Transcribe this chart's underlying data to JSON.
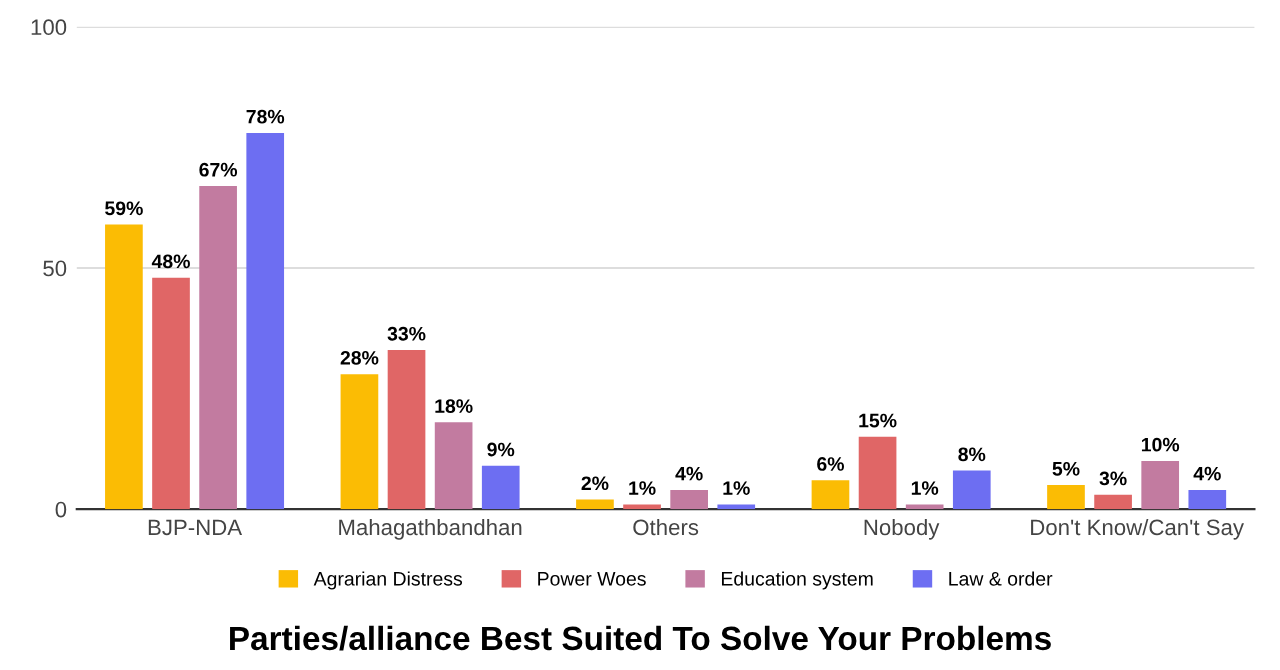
{
  "chart_data": {
    "type": "bar",
    "title": "Parties/alliance Best Suited To Solve Your Problems",
    "categories": [
      "BJP-NDA",
      "Mahagathbandhan",
      "Others",
      "Nobody",
      "Don't Know/Can't Say"
    ],
    "series": [
      {
        "name": "Agrarian Distress",
        "color": "#fbbc04",
        "values": [
          59,
          28,
          2,
          6,
          5
        ],
        "value_labels": [
          "59%",
          "28%",
          "2%",
          "6%",
          "5%"
        ]
      },
      {
        "name": "Power Woes",
        "color": "#e06666",
        "values": [
          48,
          33,
          1,
          15,
          3
        ],
        "value_labels": [
          "48%",
          "33%",
          "1%",
          "15%",
          "3%"
        ]
      },
      {
        "name": "Education system",
        "color": "#c27ba0",
        "values": [
          67,
          18,
          4,
          1,
          10
        ],
        "value_labels": [
          "67%",
          "18%",
          "4%",
          "1%",
          "10%"
        ]
      },
      {
        "name": "Law & order",
        "color": "#6d6ef2",
        "values": [
          78,
          9,
          1,
          8,
          4
        ],
        "value_labels": [
          "78%",
          "9%",
          "1%",
          "8%",
          "4%"
        ]
      }
    ],
    "ylim": [
      0,
      100
    ],
    "yticks": [
      0,
      50,
      100
    ],
    "grid": "y",
    "legend": "bottom"
  }
}
